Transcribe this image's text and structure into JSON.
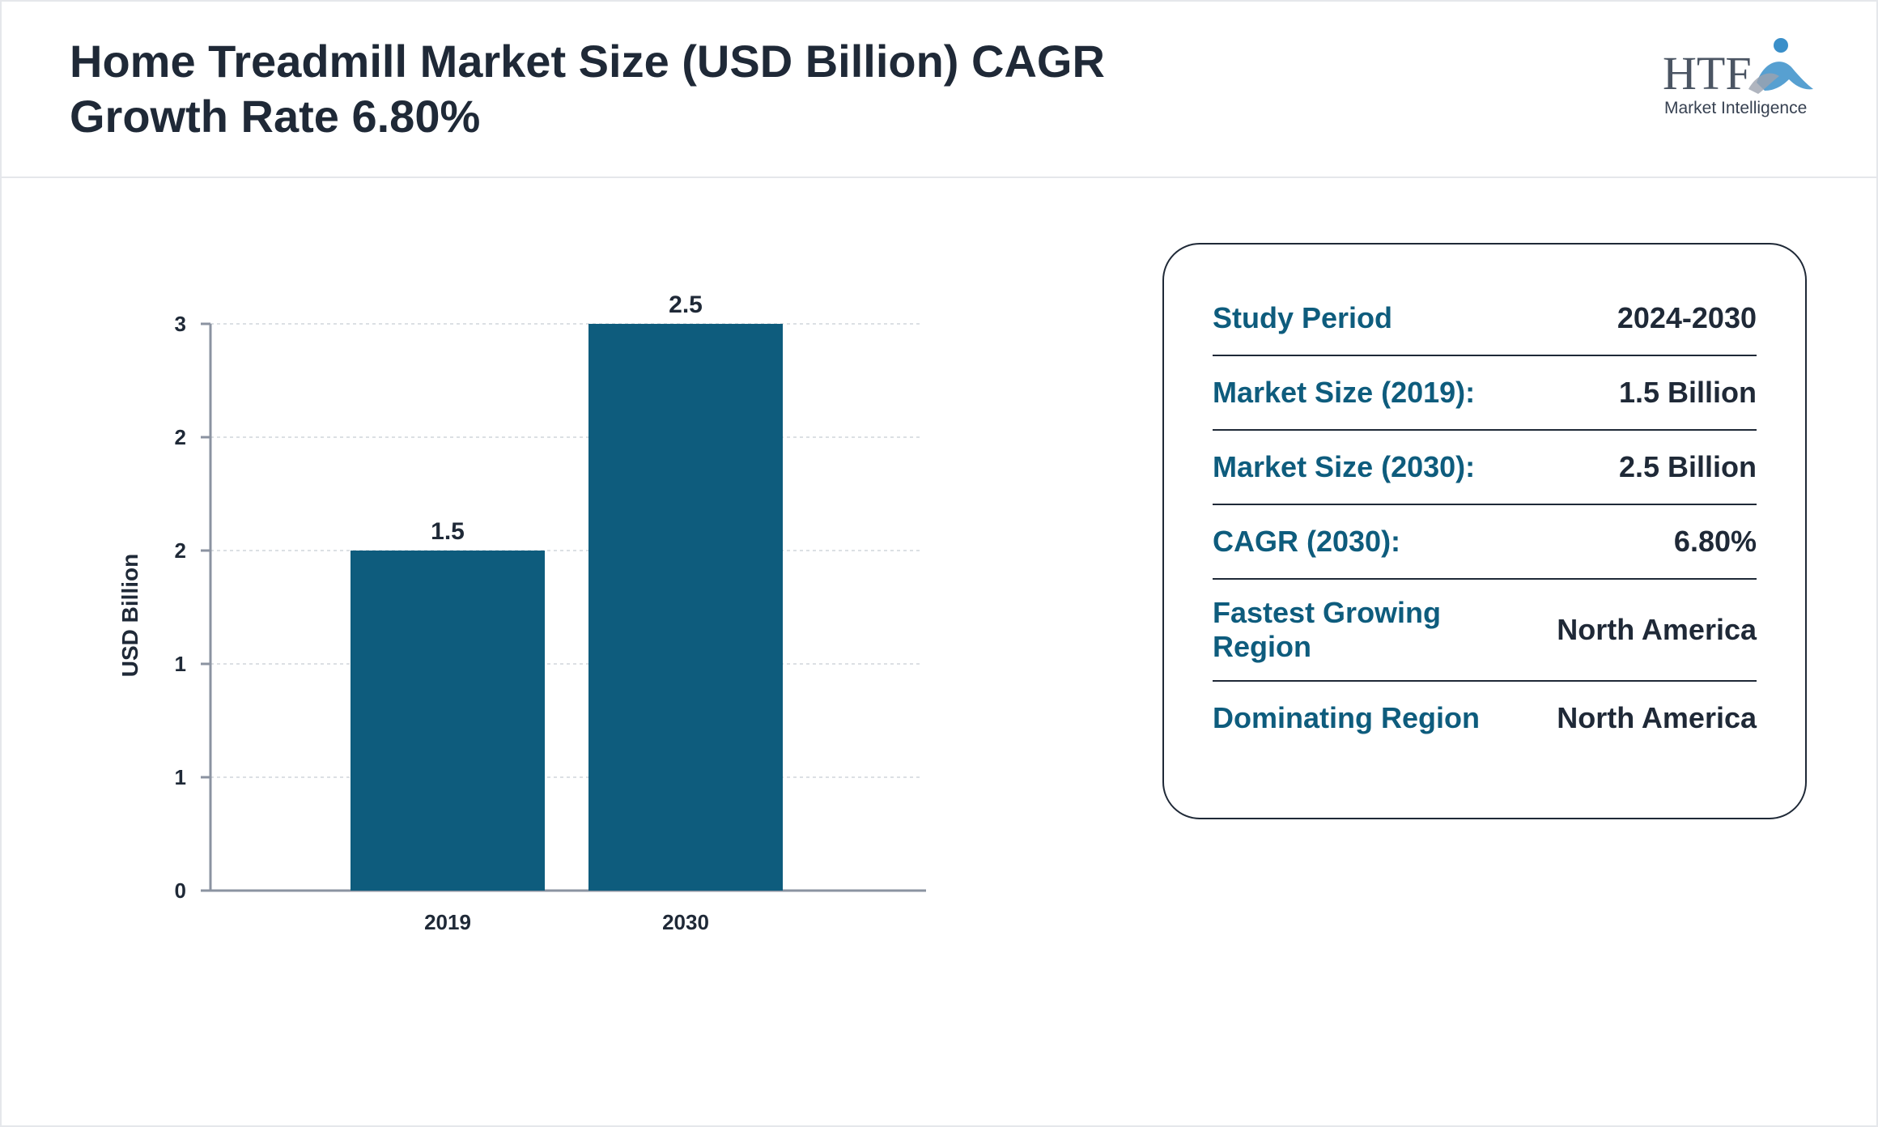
{
  "header": {
    "title": "Home Treadmill Market Size (USD Billion) CAGR Growth Rate 6.80%"
  },
  "logo": {
    "brand_text": "HTF",
    "tagline": "Market Intelligence"
  },
  "chart_data": {
    "type": "bar",
    "categories": [
      "2019",
      "2030"
    ],
    "series": [
      {
        "values": [
          1.5,
          2.5
        ]
      }
    ],
    "data_labels": [
      "1.5",
      "2.5"
    ],
    "ylabel": "USD Billion",
    "xlabel": "",
    "ylim": [
      0,
      2.5
    ],
    "y_ticks": [
      {
        "value": 0,
        "label": "0"
      },
      {
        "value": 0.5,
        "label": "1"
      },
      {
        "value": 1.0,
        "label": "1"
      },
      {
        "value": 1.5,
        "label": "2"
      },
      {
        "value": 2.0,
        "label": "2"
      },
      {
        "value": 2.5,
        "label": "3"
      }
    ],
    "grid": true,
    "bar_color": "#0e5c7d",
    "legend": "none"
  },
  "info_card": {
    "rows": [
      {
        "key": "Study Period",
        "value": "2024-2030"
      },
      {
        "key": "Market Size (2019):",
        "value": "1.5 Billion"
      },
      {
        "key": "Market Size (2030):",
        "value": "2.5 Billion"
      },
      {
        "key": "CAGR (2030):",
        "value": "6.80%"
      },
      {
        "key": "Fastest Growing Region",
        "value": "North America"
      },
      {
        "key": "Dominating Region",
        "value": "North America"
      }
    ]
  },
  "colors": {
    "accent": "#0e5c7d",
    "text": "#1f2937",
    "logo_blue": "#3a8fc9"
  }
}
